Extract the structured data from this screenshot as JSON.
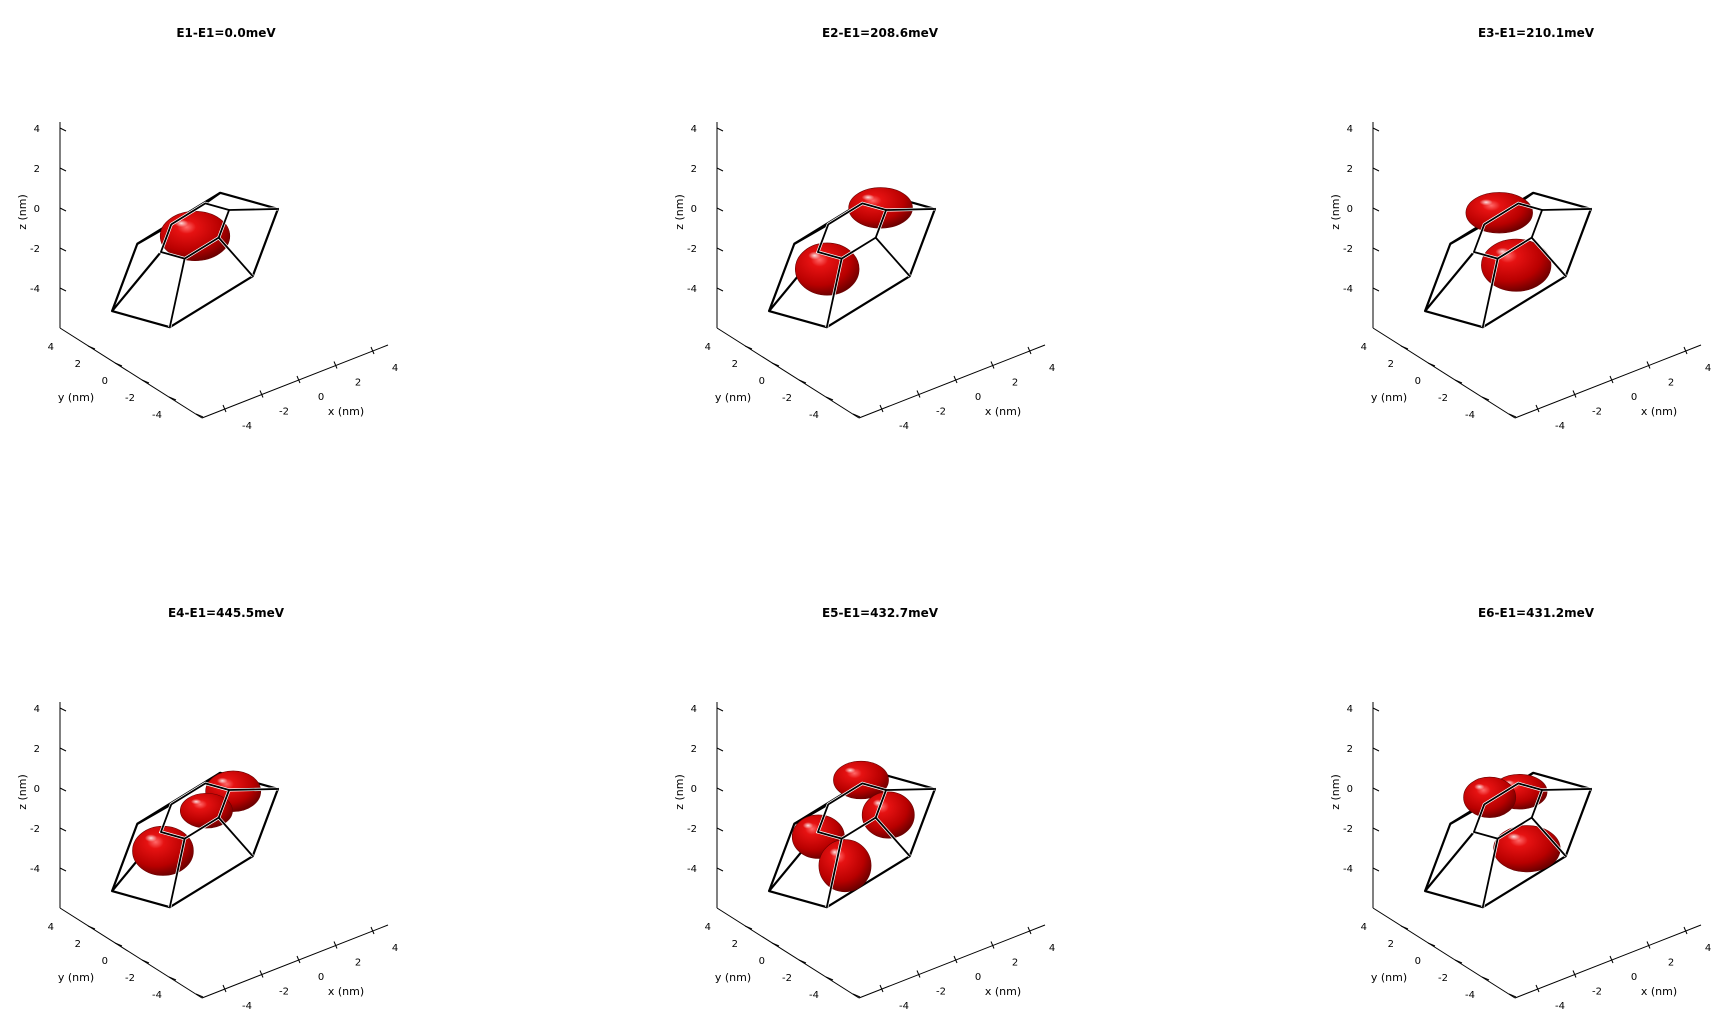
{
  "figure": {
    "background": "#ffffff",
    "lobe_color": "#cc0000",
    "frame_color": "#000000"
  },
  "chart_data": [
    {
      "type": "3d-isosurface",
      "title": "E1-E1=0.0meV",
      "xlabel": "x (nm)",
      "ylabel": "y (nm)",
      "zlabel": "z (nm)",
      "x_ticks": [
        "-4",
        "-2",
        "0",
        "2",
        "4"
      ],
      "y_ticks": [
        "4",
        "2",
        "0",
        "-2",
        "-4"
      ],
      "z_ticks": [
        "4",
        "2",
        "0",
        "-2",
        "-4"
      ],
      "lobes": [
        {
          "x": 0.0,
          "y": 0.0,
          "z": 0.2,
          "rx": 2.4,
          "ry": 1.7
        }
      ]
    },
    {
      "type": "3d-isosurface",
      "title": "E2-E1=208.6meV",
      "xlabel": "x (nm)",
      "ylabel": "y (nm)",
      "zlabel": "z (nm)",
      "x_ticks": [
        "-4",
        "-2",
        "0",
        "2",
        "4"
      ],
      "y_ticks": [
        "4",
        "2",
        "0",
        "-2",
        "-4"
      ],
      "z_ticks": [
        "4",
        "2",
        "0",
        "-2",
        "-4"
      ],
      "lobes": [
        {
          "x": 1.6,
          "y": 1.2,
          "z": 0.6,
          "rx": 2.2,
          "ry": 1.4
        },
        {
          "x": -1.4,
          "y": -1.0,
          "z": -0.6,
          "rx": 2.2,
          "ry": 1.8
        }
      ]
    },
    {
      "type": "3d-isosurface",
      "title": "E3-E1=210.1meV",
      "xlabel": "x (nm)",
      "ylabel": "y (nm)",
      "zlabel": "z (nm)",
      "x_ticks": [
        "-4",
        "-2",
        "0",
        "2",
        "4"
      ],
      "y_ticks": [
        "4",
        "2",
        "0",
        "-2",
        "-4"
      ],
      "z_ticks": [
        "4",
        "2",
        "0",
        "-2",
        "-4"
      ],
      "lobes": [
        {
          "x": -1.1,
          "y": 1.6,
          "z": 0.6,
          "rx": 2.3,
          "ry": 1.4
        },
        {
          "x": 1.0,
          "y": -1.4,
          "z": -0.6,
          "rx": 2.4,
          "ry": 1.8
        }
      ]
    },
    {
      "type": "3d-isosurface",
      "title": "E4-E1=445.5meV",
      "xlabel": "x (nm)",
      "ylabel": "y (nm)",
      "zlabel": "z (nm)",
      "x_ticks": [
        "-4",
        "-2",
        "0",
        "2",
        "4"
      ],
      "y_ticks": [
        "4",
        "2",
        "0",
        "-2",
        "-4"
      ],
      "z_ticks": [
        "4",
        "2",
        "0",
        "-2",
        "-4"
      ],
      "lobes": [
        {
          "x": -1.9,
          "y": -1.0,
          "z": -0.6,
          "rx": 2.1,
          "ry": 1.7
        },
        {
          "x": 0.6,
          "y": 0.6,
          "z": 0.0,
          "rx": 1.8,
          "ry": 1.2
        },
        {
          "x": 2.2,
          "y": 1.4,
          "z": 0.2,
          "rx": 1.9,
          "ry": 1.4
        }
      ]
    },
    {
      "type": "3d-isosurface",
      "title": "E5-E1=432.7meV",
      "xlabel": "x (nm)",
      "ylabel": "y (nm)",
      "zlabel": "z (nm)",
      "x_ticks": [
        "-4",
        "-2",
        "0",
        "2",
        "4"
      ],
      "y_ticks": [
        "4",
        "2",
        "0",
        "-2",
        "-4"
      ],
      "z_ticks": [
        "4",
        "2",
        "0",
        "-2",
        "-4"
      ],
      "lobes": [
        {
          "x": 0.0,
          "y": 2.0,
          "z": 0.8,
          "rx": 1.9,
          "ry": 1.3
        },
        {
          "x": -2.2,
          "y": -0.4,
          "z": -0.2,
          "rx": 1.8,
          "ry": 1.5
        },
        {
          "x": 2.5,
          "y": 0.0,
          "z": -0.2,
          "rx": 1.8,
          "ry": 1.6
        },
        {
          "x": 0.2,
          "y": -2.2,
          "z": -1.0,
          "rx": 1.8,
          "ry": 1.8
        }
      ]
    },
    {
      "type": "3d-isosurface",
      "title": "E6-E1=431.2meV",
      "xlabel": "x (nm)",
      "ylabel": "y (nm)",
      "zlabel": "z (nm)",
      "x_ticks": [
        "-4",
        "-2",
        "0",
        "2",
        "4"
      ],
      "y_ticks": [
        "4",
        "2",
        "0",
        "-2",
        "-4"
      ],
      "z_ticks": [
        "4",
        "2",
        "0",
        "-2",
        "-4"
      ],
      "lobes": [
        {
          "x": -1.7,
          "y": 1.4,
          "z": 0.6,
          "rx": 1.8,
          "ry": 1.4
        },
        {
          "x": 0.3,
          "y": 1.6,
          "z": 0.4,
          "rx": 1.9,
          "ry": 1.2
        },
        {
          "x": 1.8,
          "y": -1.6,
          "z": -0.8,
          "rx": 2.3,
          "ry": 1.6
        }
      ]
    }
  ]
}
